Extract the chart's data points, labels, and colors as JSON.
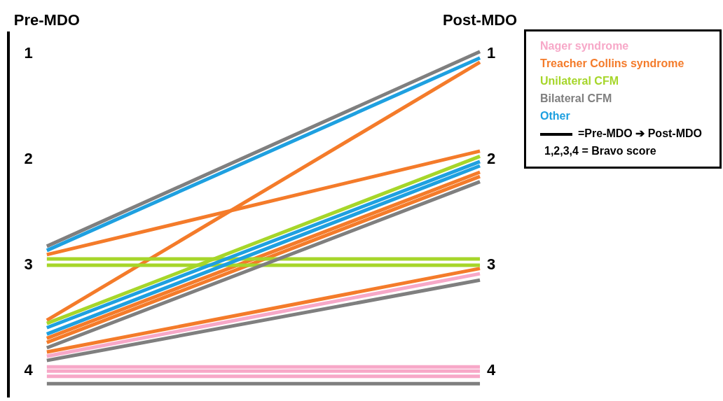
{
  "chart_data": {
    "type": "line",
    "categories": [
      "Pre-MDO",
      "Post-MDO"
    ],
    "ylim": [
      4.26,
      0.8
    ],
    "yticks": [
      1,
      2,
      3,
      4
    ],
    "y2lim": [
      4.26,
      0.8
    ],
    "y2ticks": [
      1,
      2,
      3,
      4
    ],
    "grid": false,
    "marker": "none",
    "line_style": "solid",
    "legend": "top right",
    "annotations": [
      "=Pre-MDO ➔ Post-MDO",
      "1,2,3,4 = Bravo score"
    ],
    "series": [
      {
        "name": "Nager syndrome",
        "color": "#f7a8c8",
        "values": [
          3.87,
          3.09
        ]
      },
      {
        "color": "#f7a8c8",
        "values": [
          3.97,
          3.97
        ]
      },
      {
        "color": "#f7a8c8",
        "values": [
          4.01,
          4.01
        ]
      },
      {
        "color": "#f7a8c8",
        "values": [
          4.06,
          4.06
        ]
      },
      {
        "name": "Treacher Collins syndrome",
        "color": "#f47b2a",
        "values": [
          2.91,
          1.93
        ]
      },
      {
        "color": "#f47b2a",
        "values": [
          3.53,
          1.09
        ]
      },
      {
        "color": "#f47b2a",
        "values": [
          3.7,
          2.13
        ]
      },
      {
        "color": "#f47b2a",
        "values": [
          3.74,
          2.17
        ]
      },
      {
        "color": "#f47b2a",
        "values": [
          3.83,
          3.04
        ]
      },
      {
        "name": "Unilateral CFM",
        "color": "#a6d62a",
        "values": [
          2.95,
          2.95
        ]
      },
      {
        "color": "#a6d62a",
        "values": [
          3.01,
          3.01
        ]
      },
      {
        "color": "#a6d62a",
        "values": [
          3.56,
          1.98
        ]
      },
      {
        "name": "Bilateral CFM",
        "color": "#7f7f7f",
        "values": [
          2.83,
          0.99
        ]
      },
      {
        "color": "#7f7f7f",
        "values": [
          3.79,
          2.22
        ]
      },
      {
        "color": "#7f7f7f",
        "values": [
          3.91,
          3.15
        ]
      },
      {
        "color": "#7f7f7f",
        "values": [
          4.13,
          4.13
        ]
      },
      {
        "name": "Other",
        "color": "#1ea0e0",
        "values": [
          2.87,
          1.05
        ]
      },
      {
        "color": "#1ea0e0",
        "values": [
          3.6,
          2.03
        ]
      },
      {
        "color": "#1ea0e0",
        "values": [
          3.66,
          2.07
        ]
      }
    ]
  }
}
